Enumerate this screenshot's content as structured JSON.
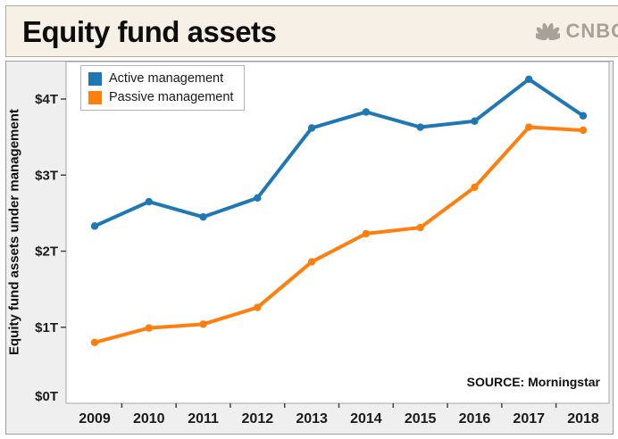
{
  "header": {
    "title": "Equity fund assets",
    "logo_text": "CNBC"
  },
  "chart_data": {
    "type": "line",
    "title": "Equity fund assets",
    "xlabel": "",
    "ylabel": "Equity fund assets under management",
    "categories": [
      "2009",
      "2010",
      "2011",
      "2012",
      "2013",
      "2014",
      "2015",
      "2016",
      "2017",
      "2018"
    ],
    "series": [
      {
        "name": "Active management",
        "color": "#1f77b4",
        "values": [
          2.33,
          2.65,
          2.45,
          2.7,
          3.62,
          3.83,
          3.63,
          3.71,
          4.26,
          3.78
        ]
      },
      {
        "name": "Passive management",
        "color": "#ff7f0e",
        "values": [
          0.8,
          0.99,
          1.04,
          1.26,
          1.86,
          2.23,
          2.31,
          2.84,
          3.63,
          3.59
        ]
      }
    ],
    "y_ticks": [
      {
        "value": 0,
        "label": "$0T"
      },
      {
        "value": 1,
        "label": "$1T"
      },
      {
        "value": 2,
        "label": "$2T"
      },
      {
        "value": 3,
        "label": "$3T"
      },
      {
        "value": 4,
        "label": "$4T"
      }
    ],
    "ylim": [
      0,
      4.49
    ],
    "grid": false,
    "legend_position": "top-left",
    "source": "SOURCE: Morningstar",
    "units": "trillions USD"
  },
  "colors": {
    "header_bg": "#f7f0e7",
    "header_border": "#b3aa9b",
    "chart_bg": "#efeff0",
    "chart_border": "#9b9b9b",
    "plot_bg": "#ffffff",
    "plot_border": "#a6a6a6",
    "logo_gray": "#a7a19a",
    "active_blue": "#1f77b4",
    "passive_orange": "#ff7f0e"
  }
}
